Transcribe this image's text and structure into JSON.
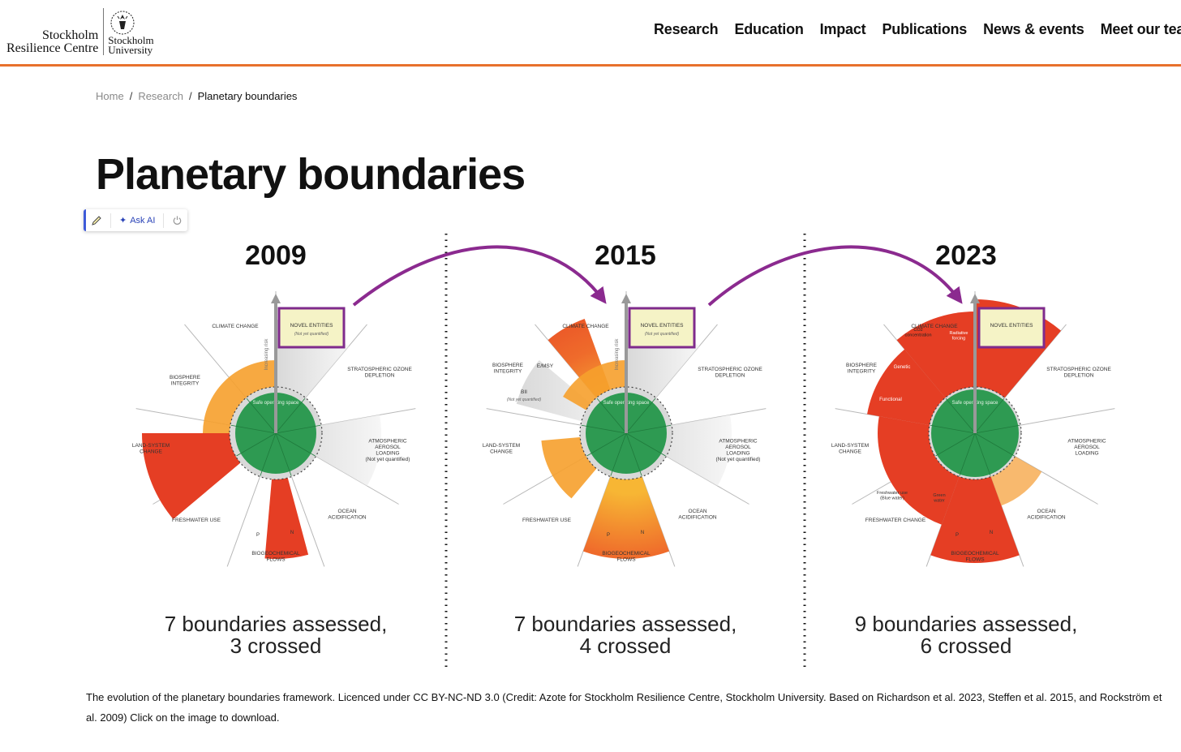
{
  "header": {
    "logo": {
      "line1": "Stockholm",
      "line2": "Resilience Centre",
      "su_line1": "Stockholm",
      "su_line2": "University"
    },
    "nav": [
      "Research",
      "Education",
      "Impact",
      "Publications",
      "News & events",
      "Meet our tea"
    ],
    "accent_color": "#e8712c"
  },
  "breadcrumb": {
    "home": "Home",
    "research": "Research",
    "current": "Planetary boundaries",
    "separator": "/"
  },
  "title": "Planetary boundaries",
  "toolbar": {
    "ask_ai": "Ask AI",
    "edit_icon": "pencil-icon",
    "power_icon": "power-icon"
  },
  "figure": {
    "panels": [
      {
        "year": "2009",
        "summary_line1": "7 boundaries assessed,",
        "summary_line2": "3 crossed",
        "labels": {
          "novel": "NOVEL ENTITIES",
          "novel_sub": "(Not yet quantified)",
          "climate": "CLIMATE CHANGE",
          "biosphere": "BIOSPHERE INTEGRITY",
          "ozone": "STRATOSPHERIC OZONE DEPLETION",
          "aerosol": "ATMOSPHERIC AEROSOL LOADING",
          "aerosol_sub": "(Not yet quantified)",
          "land": "LAND-SYSTEM CHANGE",
          "freshwater": "FRESHWATER USE",
          "ocean": "OCEAN ACIDIFICATION",
          "bio": "BIOGEOCHEMICAL FLOWS",
          "p": "P",
          "n": "N",
          "axis": "Increasing risk",
          "safe": "Safe operating space"
        }
      },
      {
        "year": "2015",
        "summary_line1": "7 boundaries assessed,",
        "summary_line2": "4 crossed",
        "labels": {
          "novel": "NOVEL ENTITIES",
          "novel_sub": "(Not yet quantified)",
          "climate": "CLIMATE CHANGE",
          "biosphere": "BIOSPHERE INTEGRITY",
          "emsy": "E/MSY",
          "bii": "BII",
          "bii_sub": "(Not yet quantified)",
          "ozone": "STRATOSPHERIC OZONE DEPLETION",
          "aerosol": "ATMOSPHERIC AEROSOL LOADING",
          "aerosol_sub": "(Not yet quantified)",
          "land": "LAND-SYSTEM CHANGE",
          "freshwater": "FRESHWATER USE",
          "ocean": "OCEAN ACIDIFICATION",
          "bio": "BIOGEOCHEMICAL FLOWS",
          "p": "P",
          "n": "N",
          "axis": "Increasing risk",
          "safe": "Safe operating space"
        }
      },
      {
        "year": "2023",
        "summary_line1": "9 boundaries assessed,",
        "summary_line2": "6 crossed",
        "labels": {
          "novel": "NOVEL ENTITIES",
          "climate": "CLIMATE CHANGE",
          "co2": "CO2 concentration",
          "rf": "Radiative forcing",
          "biosphere": "BIOSPHERE INTEGRITY",
          "genetic": "Genetic",
          "functional": "Functional",
          "ozone": "STRATOSPHERIC OZONE DEPLETION",
          "aerosol": "ATMOSPHERIC AEROSOL LOADING",
          "land": "LAND-SYSTEM CHANGE",
          "freshwater": "FRESHWATER CHANGE",
          "blue": "Freshwater use (Blue water)",
          "green": "Green water",
          "ocean": "OCEAN ACIDIFICATION",
          "bio": "BIOGEOCHEMICAL FLOWS",
          "p": "P",
          "n": "N",
          "safe": "Safe operating space"
        }
      }
    ],
    "colors": {
      "arc": "#8b2a8f",
      "safe": "#2e9a52",
      "danger": "#e8482a",
      "zone": "#f3a02c",
      "frame": "#7f2b8c"
    }
  },
  "caption": "The evolution of the planetary boundaries framework. Licenced under CC BY-NC-ND 3.0 (Credit: Azote for Stockholm Resilience Centre, Stockholm University. Based on Richardson et al. 2023, Steffen et al. 2015, and Rockström et al. 2009) Click on the image to download."
}
